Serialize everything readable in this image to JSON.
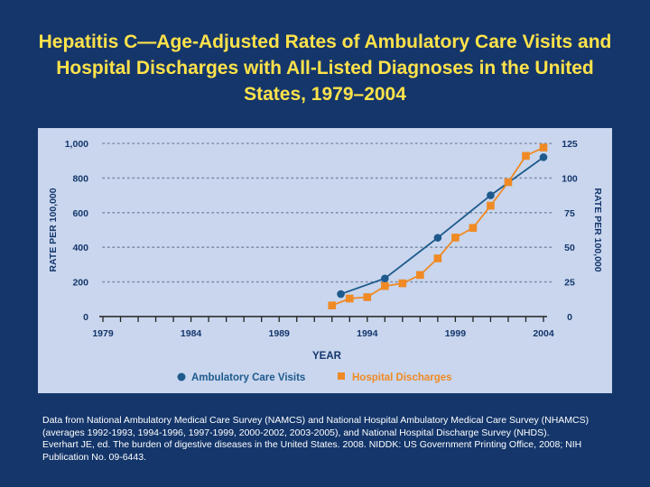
{
  "title": "Hepatitis C—Age-Adjusted Rates of Ambulatory Care Visits and Hospital Discharges with All-Listed Diagnoses in the United States, 1979–2004",
  "colors": {
    "background": "#14366b",
    "title": "#ffe24a",
    "panel": "#c9d6ee",
    "ambulatory": "#1e5a8c",
    "hospital": "#f08a24"
  },
  "chart_data": {
    "type": "line",
    "xlabel": "YEAR",
    "ylabel_left": "RATE PER 100,000",
    "ylabel_right": "RATE PER 100,000",
    "x_ticks": [
      "1979",
      "1984",
      "1989",
      "1994",
      "1999",
      "2004"
    ],
    "x_range": [
      1979,
      2004
    ],
    "left_axis": {
      "ticks": [
        "0",
        "200",
        "400",
        "600",
        "800",
        "1,000"
      ],
      "ylim": [
        0,
        1000
      ]
    },
    "right_axis": {
      "ticks": [
        "0",
        "25",
        "50",
        "75",
        "100",
        "125"
      ],
      "ylim": [
        0,
        125
      ]
    },
    "grid": "dotted horizontal",
    "legend_position": "bottom",
    "series": [
      {
        "name": "Ambulatory Care Visits",
        "axis": "left",
        "marker": "circle",
        "x": [
          1992.5,
          1995,
          1998,
          2001,
          2004
        ],
        "y": [
          130,
          220,
          455,
          700,
          920
        ]
      },
      {
        "name": "Hospital Discharges",
        "axis": "right",
        "marker": "square",
        "x": [
          1992,
          1993,
          1994,
          1995,
          1996,
          1997,
          1998,
          1999,
          2000,
          2001,
          2002,
          2003,
          2004
        ],
        "y": [
          8,
          13,
          14,
          22,
          24,
          30,
          42,
          57,
          64,
          80,
          97,
          116,
          122
        ]
      }
    ]
  },
  "footnote": {
    "line1": "Data from National Ambulatory Medical Care Survey (NAMCS) and National Hospital Ambulatory Medical Care Survey (NHAMCS) (averages 1992-1993, 1994-1996, 1997-1999, 2000-2002, 2003-2005), and National Hospital Discharge Survey (NHDS).",
    "line2": "Everhart JE, ed. The burden of digestive diseases in the United States. 2008. NIDDK: US Government Printing Office, 2008; NIH Publication No. 09-6443."
  }
}
